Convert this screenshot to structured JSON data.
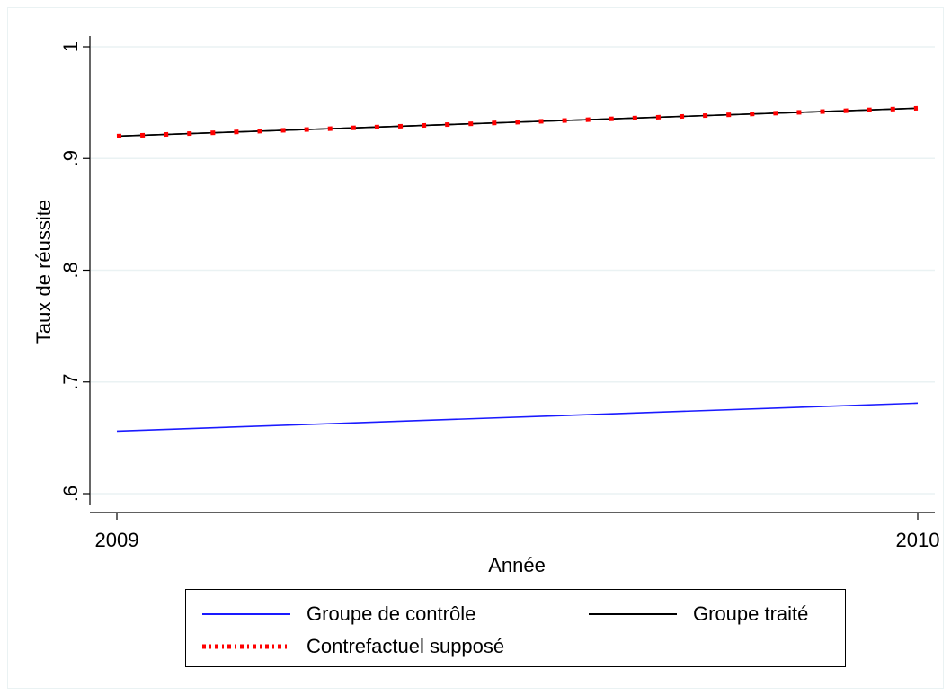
{
  "chart_data": {
    "type": "line",
    "title": "",
    "xlabel": "Année",
    "ylabel": "Taux de réussite",
    "x": [
      2009,
      2010
    ],
    "xlim": [
      2009,
      2010
    ],
    "ylim": [
      0.6,
      1.0
    ],
    "x_ticks": [
      "2009",
      "2010"
    ],
    "y_ticks": [
      ".6",
      ".7",
      ".8",
      ".9",
      "1"
    ],
    "y_tick_values": [
      0.6,
      0.7,
      0.8,
      0.9,
      1.0
    ],
    "grid": true,
    "legend_position": "bottom",
    "series": [
      {
        "name": "Groupe de contrôle",
        "values": [
          0.656,
          0.681
        ],
        "color": "#1a1aff",
        "style": "solid"
      },
      {
        "name": "Groupe traité",
        "values": [
          0.92,
          0.945
        ],
        "color": "#000000",
        "style": "solid"
      },
      {
        "name": "Contrefactuel supposé",
        "values": [
          0.92,
          0.945
        ],
        "color": "#ff0000",
        "style": "dotted"
      }
    ]
  }
}
